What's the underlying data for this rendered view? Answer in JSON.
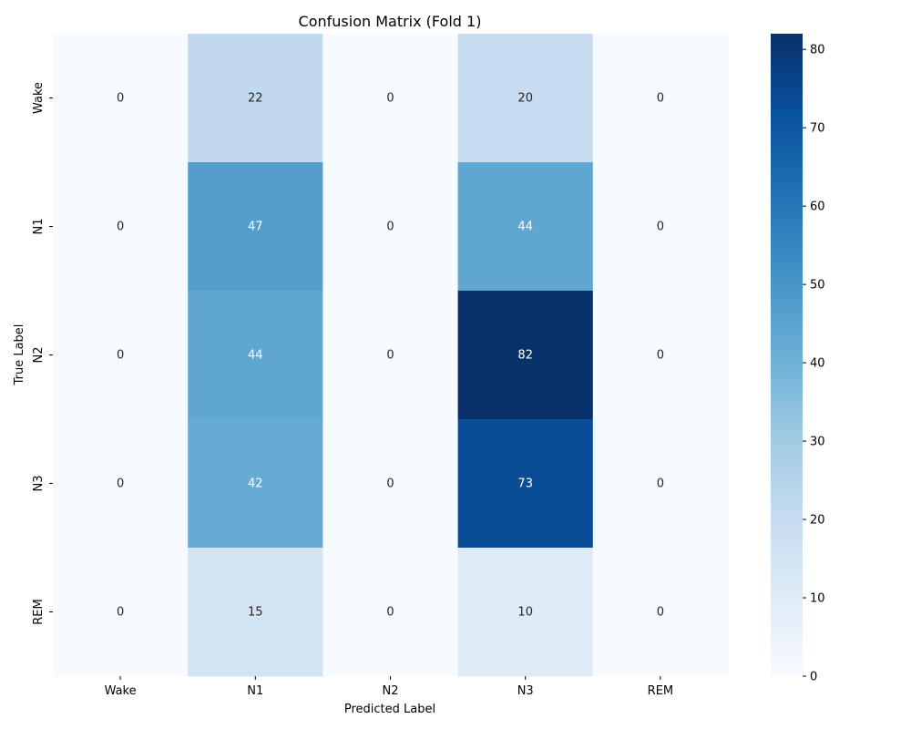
{
  "chart_data": {
    "type": "heatmap",
    "title": "Confusion Matrix (Fold 1)",
    "xlabel": "Predicted Label",
    "ylabel": "True Label",
    "x_categories": [
      "Wake",
      "N1",
      "N2",
      "N3",
      "REM"
    ],
    "y_categories": [
      "Wake",
      "N1",
      "N2",
      "N3",
      "REM"
    ],
    "values": [
      [
        0,
        22,
        0,
        20,
        0
      ],
      [
        0,
        47,
        0,
        44,
        0
      ],
      [
        0,
        44,
        0,
        82,
        0
      ],
      [
        0,
        42,
        0,
        73,
        0
      ],
      [
        0,
        15,
        0,
        10,
        0
      ]
    ],
    "colormap": "Blues",
    "colorbar": {
      "range": [
        0,
        82
      ],
      "ticks": [
        0,
        10,
        20,
        30,
        40,
        50,
        60,
        70,
        80
      ]
    },
    "grid": false
  }
}
